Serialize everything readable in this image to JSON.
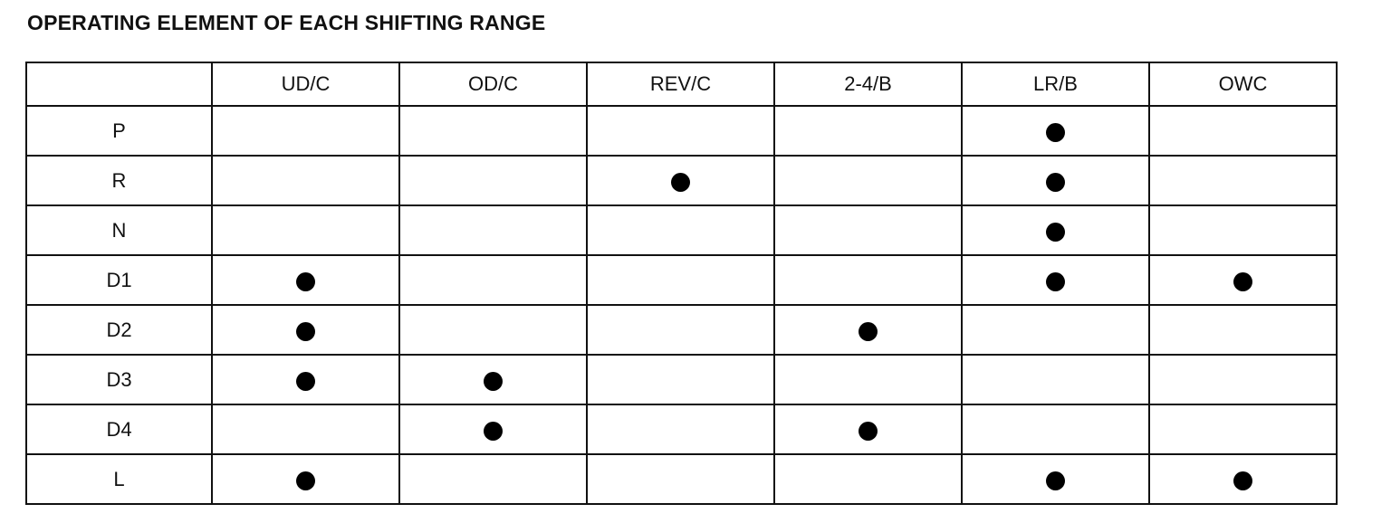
{
  "title": "OPERATING ELEMENT OF EACH SHIFTING RANGE",
  "table": {
    "columns": [
      "UD/C",
      "OD/C",
      "REV/C",
      "2-4/B",
      "LR/B",
      "OWC"
    ],
    "rows": [
      {
        "range": "P",
        "engaged": [
          false,
          false,
          false,
          false,
          true,
          false
        ]
      },
      {
        "range": "R",
        "engaged": [
          false,
          false,
          true,
          false,
          true,
          false
        ]
      },
      {
        "range": "N",
        "engaged": [
          false,
          false,
          false,
          false,
          true,
          false
        ]
      },
      {
        "range": "D1",
        "engaged": [
          true,
          false,
          false,
          false,
          true,
          true
        ]
      },
      {
        "range": "D2",
        "engaged": [
          true,
          false,
          false,
          true,
          false,
          false
        ]
      },
      {
        "range": "D3",
        "engaged": [
          true,
          true,
          false,
          false,
          false,
          false
        ]
      },
      {
        "range": "D4",
        "engaged": [
          false,
          true,
          false,
          true,
          false,
          false
        ]
      },
      {
        "range": "L",
        "engaged": [
          true,
          false,
          false,
          false,
          true,
          true
        ]
      }
    ],
    "marker_icon": "filled-circle-icon",
    "marker_color": "#000000"
  }
}
